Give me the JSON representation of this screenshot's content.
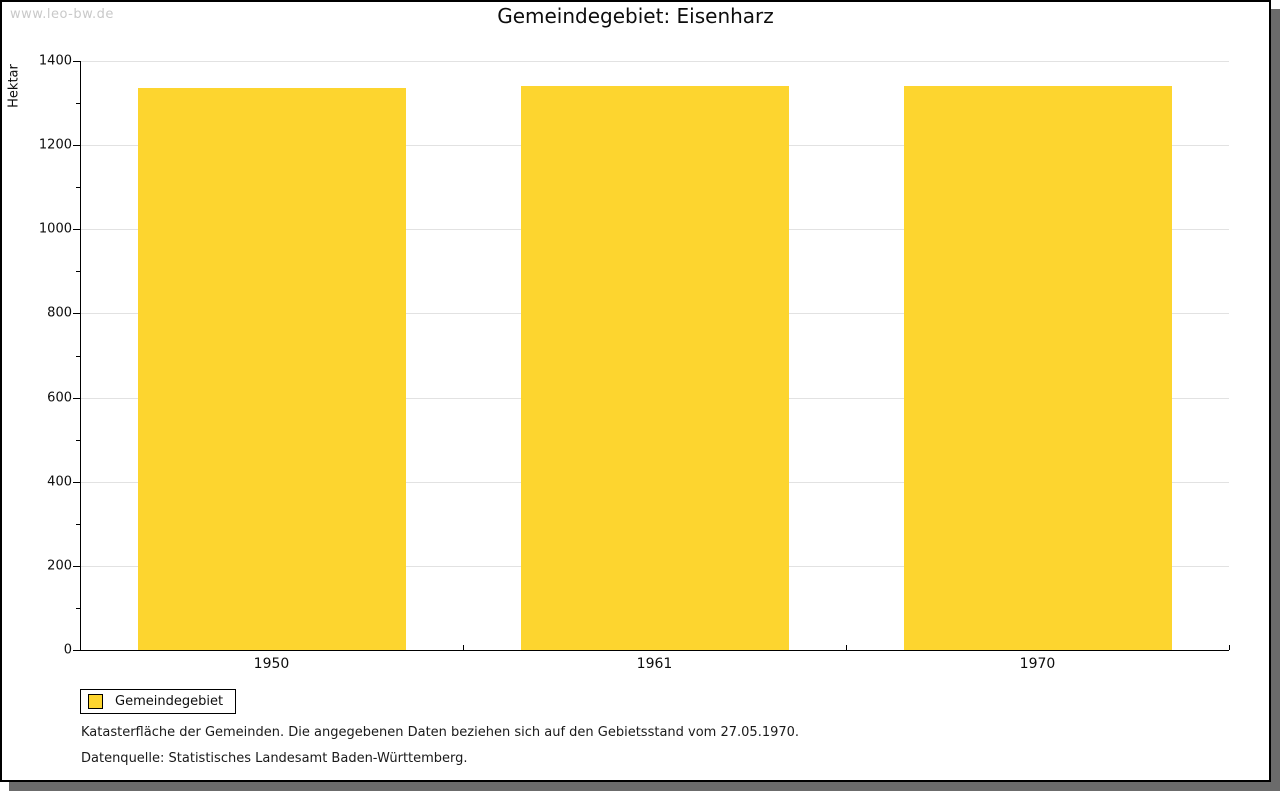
{
  "watermark": "www.leo-bw.de",
  "title": "Gemeindegebiet: Eisenharz",
  "chart_data": {
    "type": "bar",
    "title": "Gemeindegebiet: Eisenharz",
    "categories": [
      "1950",
      "1961",
      "1970"
    ],
    "series": [
      {
        "name": "Gemeindegebiet",
        "values": [
          1337,
          1340,
          1340
        ]
      }
    ],
    "xlabel": "",
    "ylabel": "Hektar",
    "ylim": [
      0,
      1400
    ],
    "yticks_major": [
      0,
      200,
      400,
      600,
      800,
      1000,
      1200,
      1400
    ],
    "ytick_minor_step": 100,
    "grid": "horizontal-major",
    "bar_color": "#FDD52F",
    "legend_position": "bottom-left"
  },
  "legend": {
    "items": [
      {
        "label": "Gemeindegebiet",
        "color": "#FDD52F"
      }
    ]
  },
  "footnotes": [
    "Katasterfläche der Gemeinden. Die angegebenen Daten beziehen sich auf den Gebietsstand vom 27.05.1970.",
    "Datenquelle: Statistisches Landesamt Baden-Württemberg."
  ]
}
